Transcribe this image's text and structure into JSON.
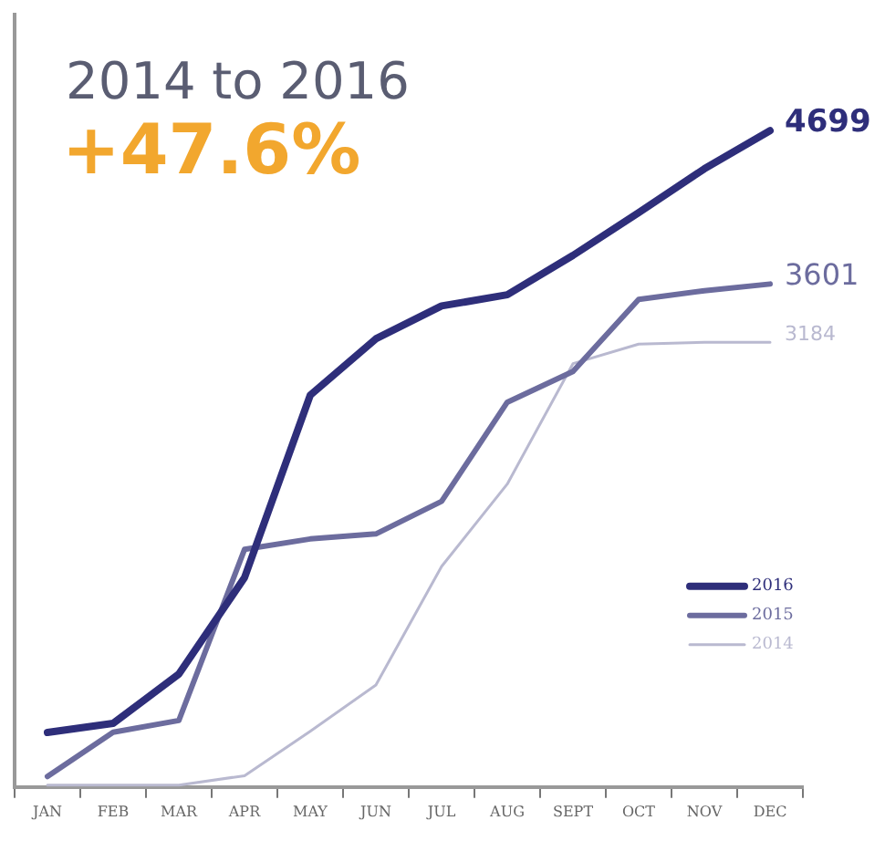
{
  "chart_data": {
    "type": "line",
    "title": "2014 to 2016",
    "subtitle": "+47.6%",
    "categories": [
      "JAN",
      "FEB",
      "MAR",
      "APR",
      "MAY",
      "JUN",
      "JUL",
      "AUG",
      "SEPT",
      "OCT",
      "NOV",
      "DEC"
    ],
    "ylim": [
      0,
      5530
    ],
    "tick_labels": "x",
    "series": [
      {
        "name": "2016",
        "color": "#2e2e7a",
        "values": [
          390,
          456,
          808,
          1499,
          2805,
          3209,
          3444,
          3524,
          3806,
          4112,
          4426,
          4699
        ],
        "value_labels": [
          null,
          null,
          null,
          null,
          null,
          null,
          null,
          null,
          null,
          null,
          null,
          "4699"
        ]
      },
      {
        "name": "2015",
        "color": "#6c6c9e",
        "values": [
          75,
          392,
          476,
          1701,
          1776,
          1812,
          2045,
          2755,
          2975,
          3491,
          3553,
          3601
        ],
        "value_labels": [
          null,
          null,
          null,
          null,
          null,
          null,
          null,
          null,
          null,
          null,
          null,
          "3601"
        ]
      },
      {
        "name": "2014",
        "color": "#b9b9d0",
        "values": [
          13,
          13,
          13,
          81,
          399,
          730,
          1579,
          2169,
          3031,
          3171,
          3184,
          3184
        ],
        "value_labels": [
          null,
          null,
          null,
          null,
          null,
          null,
          null,
          null,
          null,
          null,
          null,
          "3184"
        ]
      }
    ],
    "legend": "bottom right",
    "grid": false,
    "marker": "none",
    "line_style": "solid"
  }
}
